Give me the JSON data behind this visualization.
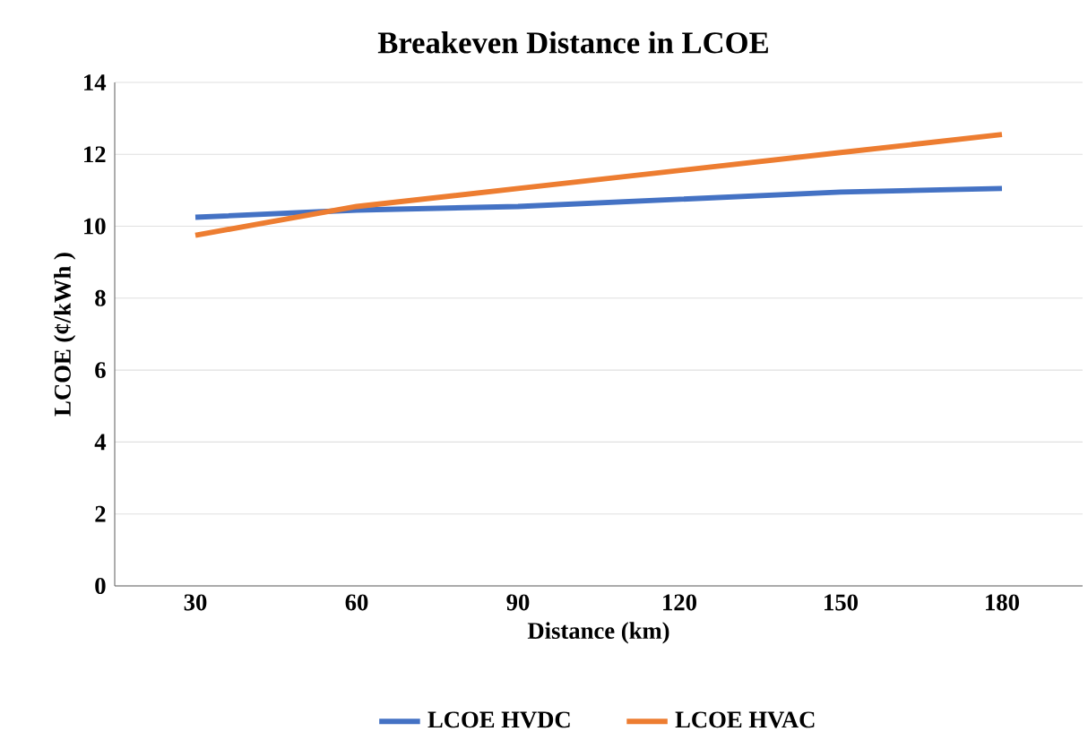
{
  "chart_data": {
    "type": "line",
    "title": "Breakeven Distance in LCOE",
    "xlabel": "Distance (km)",
    "ylabel": "LCOE (¢/kWh )",
    "categories": [
      "30",
      "60",
      "90",
      "120",
      "150",
      "180"
    ],
    "series": [
      {
        "name": "LCOE HVDC",
        "color": "#4472c4",
        "values": [
          10.25,
          10.45,
          10.55,
          10.75,
          10.95,
          11.05
        ]
      },
      {
        "name": "LCOE HVAC",
        "color": "#ed7d31",
        "values": [
          9.75,
          10.55,
          11.05,
          11.55,
          12.05,
          12.55
        ]
      }
    ],
    "ylim": [
      0,
      14
    ],
    "yticks": [
      0,
      2,
      4,
      6,
      8,
      10,
      12,
      14
    ],
    "grid": "y",
    "legend": "bottom",
    "marker": "none",
    "line_style": "solid"
  }
}
